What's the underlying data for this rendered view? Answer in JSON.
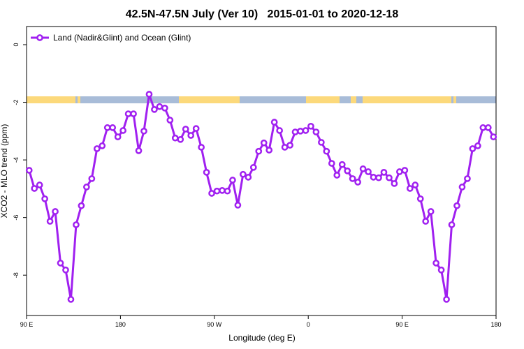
{
  "chart_data": {
    "type": "line",
    "title": "42.5N-47.5N July (Ver 10)   2015-01-01 to 2020-12-18",
    "x_label": "Longitude (deg E)",
    "y_label": "XCO2 - MLO trend (ppm)",
    "xlim": [
      90,
      540
    ],
    "ylim": [
      -9.4,
      0.63
    ],
    "xticks": [
      {
        "value": 90,
        "label": "90 E"
      },
      180,
      {
        "value": 270,
        "label": "90 W"
      },
      {
        "value": 360,
        "label": "0"
      },
      {
        "value": 450,
        "label": "90 E"
      },
      {
        "value": 540,
        "label": "180"
      }
    ],
    "yticks": [
      0,
      -2,
      -4,
      -6,
      -8
    ],
    "legend": "top-left",
    "x": [
      92.5,
      97.5,
      102.5,
      107.5,
      112.5,
      117.5,
      122.5,
      127.5,
      132.5,
      137.5,
      142.5,
      147.5,
      152.5,
      157.5,
      162.5,
      167.5,
      172.5,
      177.5,
      182.5,
      187.5,
      192.5,
      197.5,
      202.5,
      207.5,
      212.5,
      217.5,
      222.5,
      227.5,
      232.5,
      237.5,
      242.5,
      247.5,
      252.5,
      257.5,
      262.5,
      267.5,
      272.5,
      277.5,
      282.5,
      287.5,
      292.5,
      297.5,
      302.5,
      307.5,
      312.5,
      317.5,
      322.5,
      327.5,
      332.5,
      337.5,
      342.5,
      347.5,
      352.5,
      357.5,
      362.5,
      367.5,
      372.5,
      377.5,
      382.5,
      387.5,
      392.5,
      397.5,
      402.5,
      407.5,
      412.5,
      417.5,
      422.5,
      427.5,
      432.5,
      437.5,
      442.5,
      447.5,
      452.5,
      457.5,
      462.5,
      467.5,
      472.5,
      477.5,
      482.5,
      487.5,
      492.5,
      497.5,
      502.5,
      507.5,
      512.5,
      517.5,
      522.5,
      527.5,
      532.5,
      537.5
    ],
    "series": [
      {
        "name": "Land (Nadir&Glint) and Ocean (Glint)",
        "color": "#a020f0",
        "values": [
          -4.36,
          -4.99,
          -4.87,
          -5.35,
          -6.13,
          -5.79,
          -7.58,
          -7.82,
          -8.84,
          -6.25,
          -5.59,
          -4.94,
          -4.65,
          -3.61,
          -3.51,
          -2.88,
          -2.88,
          -3.2,
          -2.98,
          -2.4,
          -2.4,
          -3.68,
          -3.0,
          -1.72,
          -2.25,
          -2.15,
          -2.2,
          -2.62,
          -3.24,
          -3.29,
          -2.93,
          -3.15,
          -2.91,
          -3.56,
          -4.43,
          -5.16,
          -5.08,
          -5.06,
          -5.08,
          -4.7,
          -5.57,
          -4.5,
          -4.6,
          -4.26,
          -3.7,
          -3.41,
          -3.66,
          -2.69,
          -2.98,
          -3.56,
          -3.49,
          -3.03,
          -3.0,
          -2.98,
          -2.83,
          -3.03,
          -3.39,
          -3.7,
          -4.12,
          -4.53,
          -4.16,
          -4.38,
          -4.65,
          -4.77,
          -4.31,
          -4.41,
          -4.6,
          -4.62,
          -4.43,
          -4.62,
          -4.82,
          -4.41,
          -4.36,
          -4.99,
          -4.87,
          -5.35,
          -6.13,
          -5.79,
          -7.58,
          -7.82,
          -8.84,
          -6.25,
          -5.59,
          -4.94,
          -4.65,
          -3.61,
          -3.51,
          -2.88,
          -2.88,
          -3.2
        ]
      }
    ]
  }
}
